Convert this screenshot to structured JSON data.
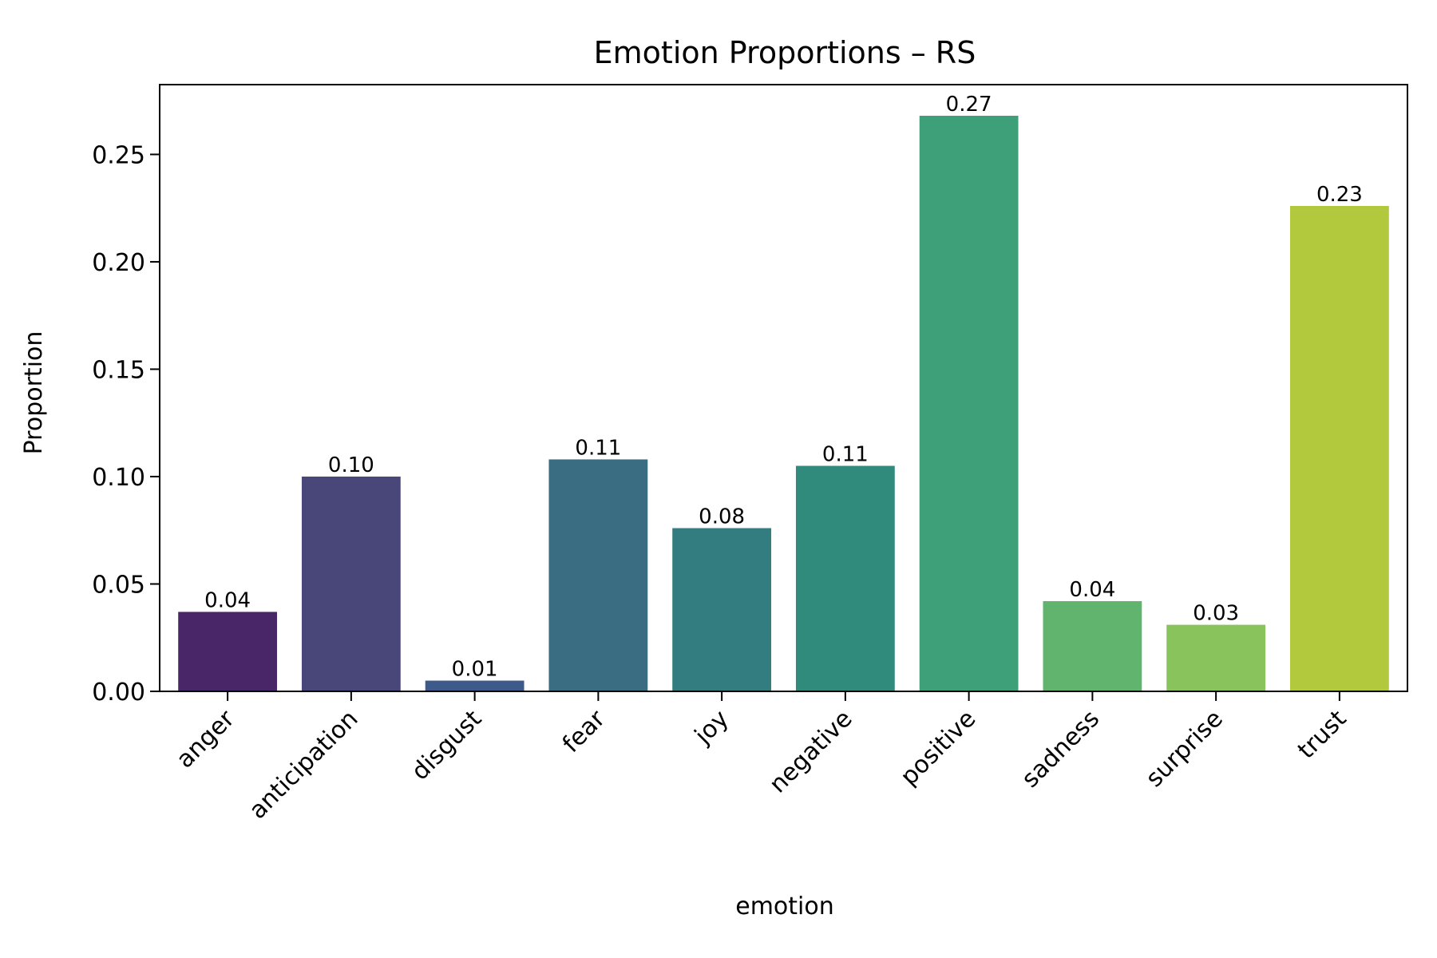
{
  "chart_data": {
    "type": "bar",
    "title": "Emotion Proportions – RS",
    "xlabel": "emotion",
    "ylabel": "Proportion",
    "ylim": [
      0,
      0.2825
    ],
    "yticks": [
      0.0,
      0.05,
      0.1,
      0.15,
      0.2,
      0.25
    ],
    "ytick_labels": [
      "0.00",
      "0.05",
      "0.10",
      "0.15",
      "0.20",
      "0.25"
    ],
    "grid": false,
    "categories": [
      "anger",
      "anticipation",
      "disgust",
      "fear",
      "joy",
      "negative",
      "positive",
      "sadness",
      "surprise",
      "trust"
    ],
    "values": [
      0.037,
      0.1,
      0.005,
      0.108,
      0.076,
      0.105,
      0.268,
      0.042,
      0.031,
      0.226
    ],
    "labels": [
      "0.04",
      "0.10",
      "0.01",
      "0.11",
      "0.08",
      "0.11",
      "0.27",
      "0.04",
      "0.03",
      "0.23"
    ],
    "colors": [
      "#482667",
      "#49477a",
      "#3e5a8a",
      "#3a6d82",
      "#337c7f",
      "#318b7d",
      "#3ea078",
      "#61b46e",
      "#89c35b",
      "#b3c93d"
    ]
  }
}
